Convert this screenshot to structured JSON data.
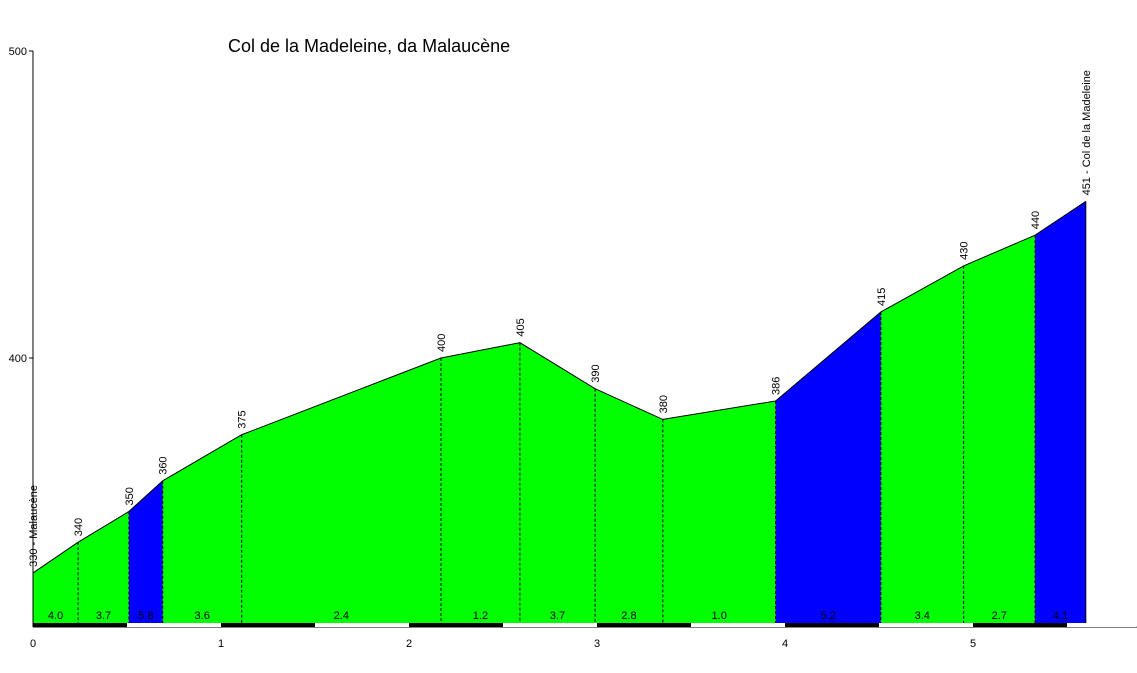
{
  "chart_data": {
    "type": "area",
    "title": "Col de la Madeleine, da Malaucène",
    "xlabel": "",
    "ylabel": "",
    "xlim": [
      0,
      5.87
    ],
    "ylim": [
      313,
      500
    ],
    "y_ticks": [
      400,
      500
    ],
    "x_ticks": [
      0,
      1,
      2,
      3,
      4,
      5
    ],
    "profile": [
      {
        "x": 0.0,
        "y": 330,
        "label": "330 - Malaucène"
      },
      {
        "x": 0.24,
        "y": 340,
        "label": "340"
      },
      {
        "x": 0.51,
        "y": 350,
        "label": "350"
      },
      {
        "x": 0.69,
        "y": 360,
        "label": "360"
      },
      {
        "x": 1.11,
        "y": 375,
        "label": "375"
      },
      {
        "x": 2.17,
        "y": 400,
        "label": "400"
      },
      {
        "x": 2.59,
        "y": 405,
        "label": "405"
      },
      {
        "x": 2.99,
        "y": 390,
        "label": "390"
      },
      {
        "x": 3.35,
        "y": 380,
        "label": "380"
      },
      {
        "x": 3.95,
        "y": 386,
        "label": "386"
      },
      {
        "x": 4.51,
        "y": 415,
        "label": "415"
      },
      {
        "x": 4.95,
        "y": 430,
        "label": "430"
      },
      {
        "x": 5.33,
        "y": 440,
        "label": "440"
      },
      {
        "x": 5.6,
        "y": 451,
        "label": "451 - Col de la Madeleine"
      }
    ],
    "segments": [
      {
        "gradient": "4.0",
        "color": "#00ff00"
      },
      {
        "gradient": "3.7",
        "color": "#00ff00"
      },
      {
        "gradient": "5.8",
        "color": "#0000ff"
      },
      {
        "gradient": "3.6",
        "color": "#00ff00"
      },
      {
        "gradient": "2.4",
        "color": "#00ff00"
      },
      {
        "gradient": "1.2",
        "color": "#00ff00"
      },
      {
        "gradient": "3.7",
        "color": "#00ff00"
      },
      {
        "gradient": "2.8",
        "color": "#00ff00"
      },
      {
        "gradient": "1.0",
        "color": "#00ff00"
      },
      {
        "gradient": "5.2",
        "color": "#0000ff"
      },
      {
        "gradient": "3.4",
        "color": "#00ff00"
      },
      {
        "gradient": "2.7",
        "color": "#00ff00"
      },
      {
        "gradient": "4.1",
        "color": "#0000ff"
      }
    ]
  }
}
